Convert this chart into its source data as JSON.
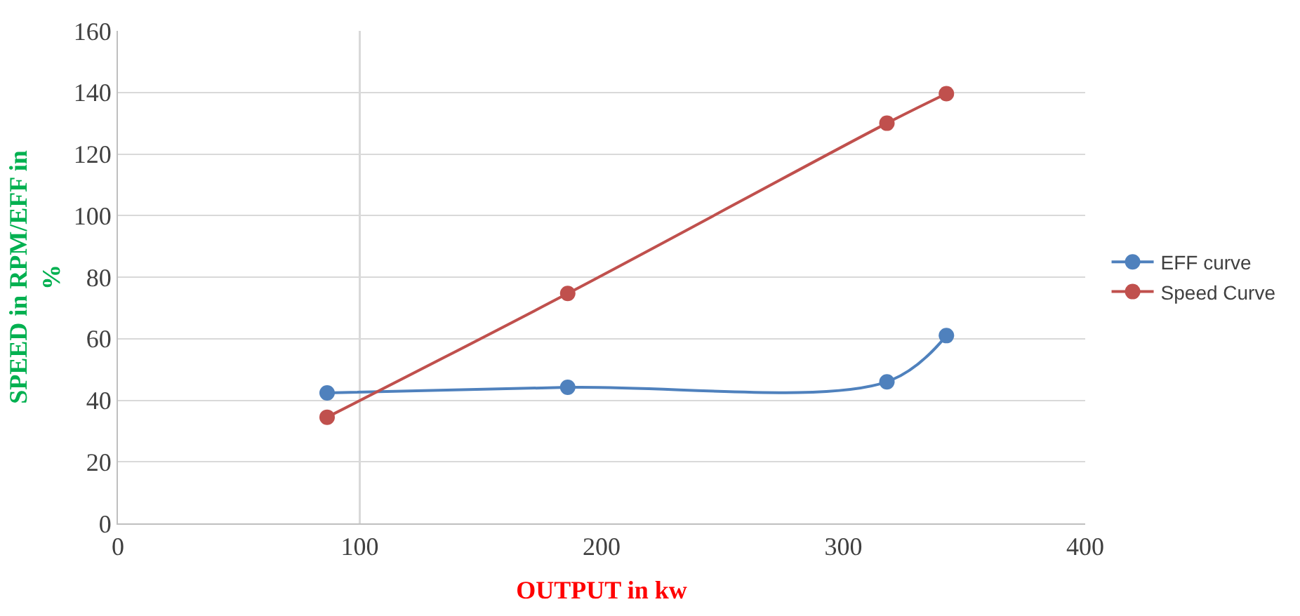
{
  "chart_data": {
    "type": "line",
    "xlabel": "OUTPUT in kw",
    "ylabel": "SPEED in RPM/EFF in %",
    "series": [
      {
        "name": "EFF curve",
        "color": "#4f81bd",
        "x": [
          86.5,
          186,
          318,
          342.6
        ],
        "values": [
          42.4,
          44.2,
          46,
          61
        ]
      },
      {
        "name": "Speed Curve",
        "color": "#c0504d",
        "x": [
          86.5,
          186,
          318,
          342.6
        ],
        "values": [
          34.5,
          74.7,
          130,
          139.6
        ]
      }
    ],
    "xlim": [
      0,
      400
    ],
    "xticks": [
      0,
      100,
      200,
      300,
      400
    ],
    "ylim": [
      0,
      160
    ],
    "yticks": [
      0,
      20,
      40,
      60,
      80,
      100,
      120,
      140,
      160
    ],
    "ref_lines": [
      {
        "axis": "x",
        "value": 100,
        "label": null,
        "color": "#d9d9d9"
      }
    ],
    "grid": "y",
    "legend": "right",
    "marker": "circle",
    "line_style": "solid"
  }
}
